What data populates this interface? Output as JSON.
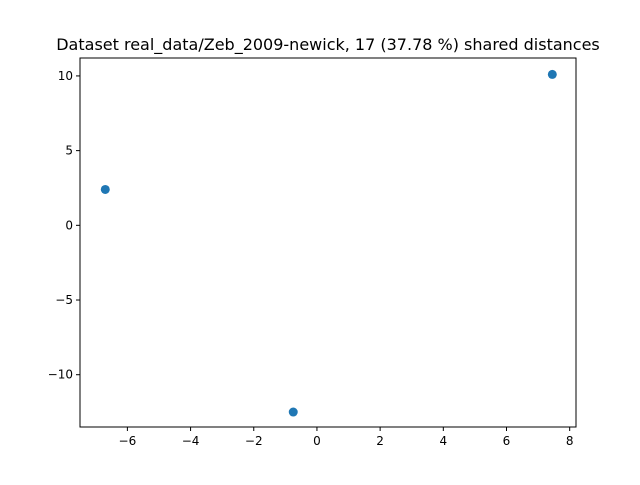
{
  "chart_data": {
    "type": "scatter",
    "title": "Dataset real_data/Zeb_2009-newick, 17 (37.78 %) shared distances",
    "xlabel": "",
    "ylabel": "",
    "xlim": [
      -7.5,
      8.2
    ],
    "ylim": [
      -13.5,
      11.2
    ],
    "xticks": [
      -6,
      -4,
      -2,
      0,
      2,
      4,
      6,
      8
    ],
    "xtick_labels": [
      "−6",
      "−4",
      "−2",
      "0",
      "2",
      "4",
      "6",
      "8"
    ],
    "yticks": [
      -10,
      -5,
      0,
      5,
      10
    ],
    "ytick_labels": [
      "−10",
      "−5",
      "0",
      "5",
      "10"
    ],
    "grid": false,
    "series": [
      {
        "color": "#1f77b4",
        "x": [
          -6.7,
          -0.75,
          7.45
        ],
        "y": [
          2.4,
          -12.5,
          10.1
        ]
      }
    ]
  }
}
